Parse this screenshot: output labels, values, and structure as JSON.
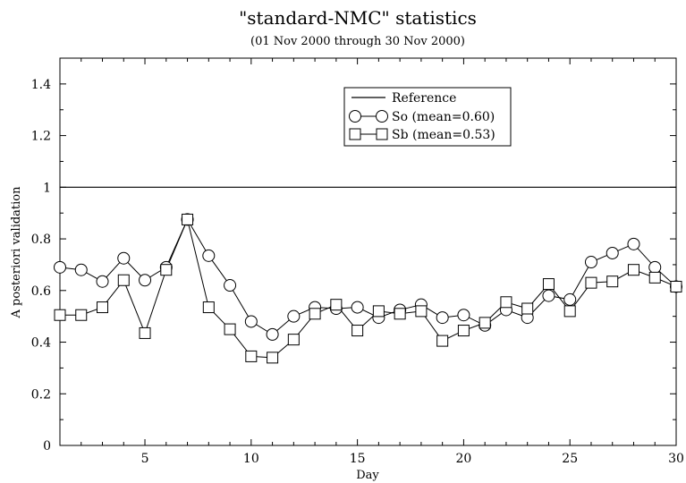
{
  "chart_data": {
    "type": "line",
    "title": "\"standard-NMC\" statistics",
    "subtitle": "(01 Nov 2000 through 30 Nov 2000)",
    "xlabel": "Day",
    "ylabel": "A posteriori validation",
    "xlim": [
      1,
      30
    ],
    "ylim": [
      0,
      1.5
    ],
    "x_ticks": [
      5,
      10,
      15,
      20,
      25,
      30
    ],
    "y_ticks": [
      0,
      0.2,
      0.4,
      0.6,
      0.8,
      1,
      1.2,
      1.4
    ],
    "x_tick_labels": [
      "5",
      "10",
      "15",
      "20",
      "25",
      "30"
    ],
    "y_tick_labels": [
      "0",
      "0.2",
      "0.4",
      "0.6",
      "0.8",
      "1",
      "1.2",
      "1.4"
    ],
    "grid": false,
    "legend_position": "top-right",
    "reference": {
      "name": "Reference",
      "value": 1
    },
    "x": [
      1,
      2,
      3,
      4,
      5,
      6,
      7,
      8,
      9,
      10,
      11,
      12,
      13,
      14,
      15,
      16,
      17,
      18,
      19,
      20,
      21,
      22,
      23,
      24,
      25,
      26,
      27,
      28,
      29,
      30
    ],
    "series": [
      {
        "name": "So (mean=0.60)",
        "marker": "circle",
        "values": [
          0.69,
          0.68,
          0.635,
          0.725,
          0.64,
          0.69,
          0.875,
          0.735,
          0.62,
          0.48,
          0.43,
          0.5,
          0.535,
          0.53,
          0.535,
          0.495,
          0.525,
          0.545,
          0.495,
          0.505,
          0.465,
          0.525,
          0.495,
          0.58,
          0.565,
          0.71,
          0.745,
          0.78,
          0.69,
          0.615
        ]
      },
      {
        "name": "Sb (mean=0.53)",
        "marker": "square",
        "values": [
          0.505,
          0.505,
          0.535,
          0.64,
          0.435,
          0.68,
          0.875,
          0.535,
          0.45,
          0.345,
          0.34,
          0.41,
          0.51,
          0.545,
          0.445,
          0.52,
          0.51,
          0.52,
          0.405,
          0.445,
          0.475,
          0.555,
          0.53,
          0.625,
          0.52,
          0.63,
          0.635,
          0.68,
          0.65,
          0.615
        ]
      }
    ],
    "colors": {
      "line": "#000000",
      "marker_fill": "#ffffff",
      "background": "#ffffff"
    }
  }
}
